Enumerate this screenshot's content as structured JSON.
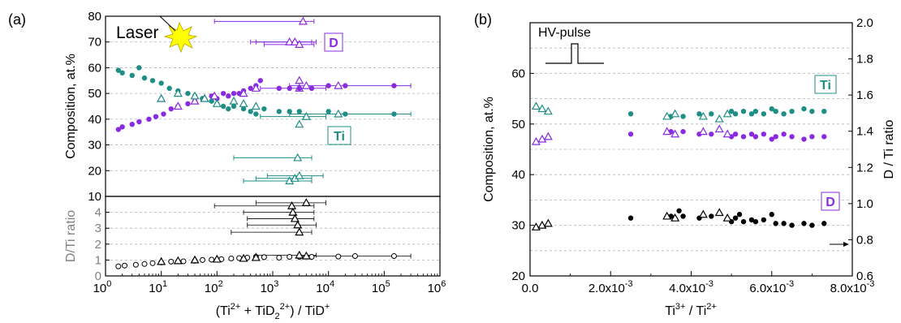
{
  "colors": {
    "teal": "#1f8f86",
    "purple": "#8a2be2",
    "black": "#000000",
    "grid": "#b4b4b4",
    "axis_gray": "#808080",
    "laser": "#ffff00"
  },
  "chart_data": [
    {
      "type": "scatter",
      "panel_label": "(a)",
      "xlabel_parts": {
        "a": "(Ti",
        "b": "2+",
        "c": " + TiD",
        "d": "2",
        "e": "2+",
        "f": ") / TiD",
        "g": "+"
      },
      "xscale": "log",
      "xlim": [
        1,
        1000000
      ],
      "x_ticks": [
        {
          "value": 1,
          "mant": "10",
          "exp": "0"
        },
        {
          "value": 10,
          "mant": "10",
          "exp": "1"
        },
        {
          "value": 100,
          "mant": "10",
          "exp": "2"
        },
        {
          "value": 1000,
          "mant": "10",
          "exp": "3"
        },
        {
          "value": 10000,
          "mant": "10",
          "exp": "4"
        },
        {
          "value": 100000,
          "mant": "10",
          "exp": "5"
        },
        {
          "value": 1000000,
          "mant": "10",
          "exp": "6"
        }
      ],
      "grid": true,
      "annotations": {
        "laser": "Laser"
      },
      "top": {
        "ylabel": "Composition, at.%",
        "ylim": [
          10,
          80
        ],
        "y_ticks": [
          "10",
          "20",
          "30",
          "40",
          "50",
          "60",
          "70",
          "80"
        ],
        "series": [
          {
            "name": "D",
            "color": "purple",
            "circles": [
              [
                1.7,
                36
              ],
              [
                2,
                37
              ],
              [
                3,
                38
              ],
              [
                4,
                39
              ],
              [
                6,
                40
              ],
              [
                8,
                41
              ],
              [
                11,
                42
              ],
              [
                15,
                44
              ],
              [
                20,
                45
              ],
              [
                30,
                46
              ],
              [
                40,
                47
              ],
              [
                55,
                48
              ],
              [
                80,
                49
              ],
              [
                100,
                48
              ],
              [
                130,
                50
              ],
              [
                160,
                49
              ],
              [
                200,
                50
              ],
              [
                250,
                50
              ],
              [
                300,
                51
              ],
              [
                400,
                52
              ],
              [
                500,
                53
              ],
              [
                600,
                55
              ],
              [
                1300,
                52
              ],
              [
                2000,
                52
              ],
              [
                3000,
                52
              ],
              [
                5000,
                52
              ],
              [
                10000,
                53
              ],
              [
                20000,
                53
              ],
              [
                150000,
                53
              ]
            ],
            "triangles": [
              [
                10,
                48
              ],
              [
                20,
                45
              ],
              [
                40,
                47
              ],
              [
                60,
                48
              ],
              [
                90,
                49
              ],
              [
                300,
                50
              ],
              [
                500,
                52
              ],
              [
                3000,
                55
              ],
              [
                4000,
                53
              ]
            ],
            "bars_left": [
              [
                2000,
                70,
                400,
                6000
              ],
              [
                2500,
                70,
                500,
                5000
              ],
              [
                3000,
                69,
                700,
                5500
              ],
              [
                3500,
                78,
                90,
                5500
              ],
              [
                3000,
                52,
                600,
                9000
              ],
              [
                15000,
                53,
                2000,
                300000
              ]
            ]
          },
          {
            "name": "Ti",
            "color": "teal",
            "circles": [
              [
                1.7,
                59
              ],
              [
                2,
                58
              ],
              [
                3,
                57
              ],
              [
                4,
                60
              ],
              [
                5,
                56
              ],
              [
                7,
                55
              ],
              [
                10,
                54
              ],
              [
                14,
                52
              ],
              [
                20,
                51
              ],
              [
                30,
                50
              ],
              [
                40,
                49
              ],
              [
                55,
                48
              ],
              [
                80,
                47
              ],
              [
                100,
                46
              ],
              [
                130,
                45
              ],
              [
                160,
                44
              ],
              [
                200,
                45
              ],
              [
                300,
                44
              ],
              [
                400,
                43
              ],
              [
                500,
                42
              ],
              [
                700,
                44
              ],
              [
                1300,
                43
              ],
              [
                2000,
                43
              ],
              [
                3000,
                43
              ],
              [
                10000,
                43
              ],
              [
                20000,
                42
              ],
              [
                150000,
                42
              ]
            ],
            "triangles": [
              [
                10,
                48
              ],
              [
                20,
                50
              ],
              [
                40,
                49
              ],
              [
                60,
                48
              ],
              [
                100,
                46
              ],
              [
                200,
                47
              ],
              [
                300,
                46
              ],
              [
                500,
                45
              ],
              [
                3000,
                38
              ],
              [
                4000,
                41
              ]
            ],
            "bars_left": [
              [
                2000,
                16,
                300,
                5000
              ],
              [
                2500,
                17,
                500,
                5000
              ],
              [
                3000,
                18,
                800,
                8000
              ],
              [
                2800,
                25,
                200,
                5000
              ],
              [
                4000,
                41,
                600,
                9000
              ],
              [
                15000,
                42,
                2000,
                300000
              ]
            ]
          }
        ],
        "labels": {
          "D": "D",
          "Ti": "Ti"
        }
      },
      "bottom": {
        "ylabel": "D/Ti ratio",
        "ylim": [
          0,
          5
        ],
        "y_ticks": [
          "0",
          "1",
          "2",
          "3",
          "4"
        ],
        "circles": [
          [
            1.7,
            0.6
          ],
          [
            2.2,
            0.65
          ],
          [
            3.5,
            0.7
          ],
          [
            5,
            0.75
          ],
          [
            7,
            0.8
          ],
          [
            10,
            0.85
          ],
          [
            15,
            0.9
          ],
          [
            25,
            0.92
          ],
          [
            40,
            0.95
          ],
          [
            55,
            1.0
          ],
          [
            80,
            1.02
          ],
          [
            120,
            1.05
          ],
          [
            180,
            1.1
          ],
          [
            250,
            1.12
          ],
          [
            350,
            1.15
          ],
          [
            500,
            1.2
          ],
          [
            700,
            1.18
          ],
          [
            1300,
            1.15
          ],
          [
            2000,
            1.2
          ],
          [
            3000,
            1.2
          ],
          [
            5000,
            1.2
          ],
          [
            15000,
            1.22
          ],
          [
            30000,
            1.25
          ],
          [
            150000,
            1.25
          ]
        ],
        "triangles": [
          [
            10,
            0.9
          ],
          [
            20,
            0.95
          ],
          [
            40,
            1.0
          ],
          [
            100,
            1.05
          ],
          [
            300,
            1.1
          ],
          [
            500,
            1.15
          ],
          [
            3000,
            1.3
          ],
          [
            4000,
            1.25
          ],
          [
            2200,
            4.4
          ],
          [
            2300,
            4.0
          ],
          [
            2500,
            3.6
          ],
          [
            2800,
            3.2
          ],
          [
            3000,
            2.75
          ],
          [
            4000,
            4.6
          ]
        ],
        "bars": [
          [
            2200,
            4.4,
            90,
            5500
          ],
          [
            2300,
            4.0,
            300,
            5500
          ],
          [
            2500,
            3.6,
            350,
            5500
          ],
          [
            2800,
            3.2,
            350,
            6000
          ],
          [
            3000,
            2.75,
            180,
            5000
          ],
          [
            4000,
            4.6,
            500,
            9000
          ],
          [
            3000,
            1.3,
            500,
            6000
          ],
          [
            15000,
            1.25,
            3000,
            300000
          ]
        ]
      }
    },
    {
      "type": "scatter",
      "panel_label": "(b)",
      "xlabel_parts": {
        "a": "Ti",
        "b": "3+",
        "c": " / Ti",
        "d": "2+"
      },
      "xlim": [
        0,
        0.008
      ],
      "x_ticks": [
        {
          "value": 0,
          "label": "0.0"
        },
        {
          "value": 0.002,
          "label": "2.0x10",
          "exp": "-3"
        },
        {
          "value": 0.004,
          "label": "4.0x10",
          "exp": "-3"
        },
        {
          "value": 0.006,
          "label": "6.0x10",
          "exp": "-3"
        },
        {
          "value": 0.008,
          "label": "8.0x10",
          "exp": "-3"
        }
      ],
      "ylabel": "Composition, at.%",
      "ylim": [
        20,
        70
      ],
      "y_ticks": [
        "20",
        "30",
        "40",
        "50",
        "60"
      ],
      "y2label": "D / Ti ratio",
      "y2lim": [
        0.6,
        2.0
      ],
      "y2_ticks": [
        "0.6",
        "0.8",
        "1.0",
        "1.2",
        "1.4",
        "1.6",
        "1.8",
        "2.0"
      ],
      "grid": true,
      "annotations": {
        "pulse": "HV-pulse"
      },
      "series": [
        {
          "name": "Ti",
          "color": "teal",
          "triangles": [
            [
              0.00015,
              53.5
            ],
            [
              0.0003,
              53
            ],
            [
              0.00045,
              52.5
            ],
            [
              0.0034,
              51.5
            ],
            [
              0.0036,
              52
            ],
            [
              0.0043,
              51.5
            ],
            [
              0.0047,
              51
            ],
            [
              0.0049,
              52
            ]
          ],
          "circles": [
            [
              0.0025,
              52
            ],
            [
              0.0035,
              51.5
            ],
            [
              0.0038,
              51.5
            ],
            [
              0.0042,
              52
            ],
            [
              0.0045,
              52
            ],
            [
              0.005,
              52.5
            ],
            [
              0.0051,
              52
            ],
            [
              0.0053,
              52.5
            ],
            [
              0.0055,
              52
            ],
            [
              0.0056,
              52.5
            ],
            [
              0.0058,
              52
            ],
            [
              0.006,
              53
            ],
            [
              0.0061,
              52.5
            ],
            [
              0.0063,
              52
            ],
            [
              0.0065,
              52.5
            ],
            [
              0.0068,
              53
            ],
            [
              0.007,
              52.5
            ],
            [
              0.0073,
              52.5
            ]
          ]
        },
        {
          "name": "D",
          "color": "purple",
          "triangles": [
            [
              0.00015,
              46.5
            ],
            [
              0.0003,
              47
            ],
            [
              0.00045,
              47.5
            ],
            [
              0.0034,
              48.5
            ],
            [
              0.0036,
              48
            ],
            [
              0.0043,
              48.5
            ],
            [
              0.0047,
              49
            ],
            [
              0.0049,
              48
            ]
          ],
          "circles": [
            [
              0.0025,
              48
            ],
            [
              0.0035,
              48.5
            ],
            [
              0.0038,
              48.5
            ],
            [
              0.0042,
              48
            ],
            [
              0.0045,
              48
            ],
            [
              0.005,
              47.5
            ],
            [
              0.0051,
              48
            ],
            [
              0.0053,
              47.5
            ],
            [
              0.0055,
              48
            ],
            [
              0.0056,
              47.5
            ],
            [
              0.0058,
              48
            ],
            [
              0.006,
              47
            ],
            [
              0.0061,
              47.5
            ],
            [
              0.0063,
              48
            ],
            [
              0.0065,
              47.5
            ],
            [
              0.0068,
              47
            ],
            [
              0.007,
              47.5
            ],
            [
              0.0073,
              47.5
            ]
          ]
        },
        {
          "name": "D / Ti ratio",
          "color": "black",
          "axis": "right",
          "triangles": [
            [
              0.00015,
              0.87
            ],
            [
              0.0003,
              0.88
            ],
            [
              0.00045,
              0.89
            ],
            [
              0.0034,
              0.93
            ],
            [
              0.0036,
              0.92
            ],
            [
              0.0043,
              0.94
            ],
            [
              0.0047,
              0.95
            ],
            [
              0.0049,
              0.92
            ]
          ],
          "circles": [
            [
              0.0025,
              0.92
            ],
            [
              0.0035,
              0.93
            ],
            [
              0.0037,
              0.96
            ],
            [
              0.0038,
              0.93
            ],
            [
              0.0042,
              0.92
            ],
            [
              0.0045,
              0.93
            ],
            [
              0.005,
              0.9
            ],
            [
              0.0051,
              0.92
            ],
            [
              0.0052,
              0.94
            ],
            [
              0.0053,
              0.9
            ],
            [
              0.0055,
              0.91
            ],
            [
              0.0056,
              0.9
            ],
            [
              0.0058,
              0.91
            ],
            [
              0.006,
              0.94
            ],
            [
              0.0061,
              0.89
            ],
            [
              0.0063,
              0.89
            ],
            [
              0.0065,
              0.88
            ],
            [
              0.0068,
              0.89
            ],
            [
              0.007,
              0.88
            ],
            [
              0.0073,
              0.89
            ]
          ]
        }
      ],
      "labels": {
        "D": "D",
        "Ti": "Ti"
      }
    }
  ]
}
